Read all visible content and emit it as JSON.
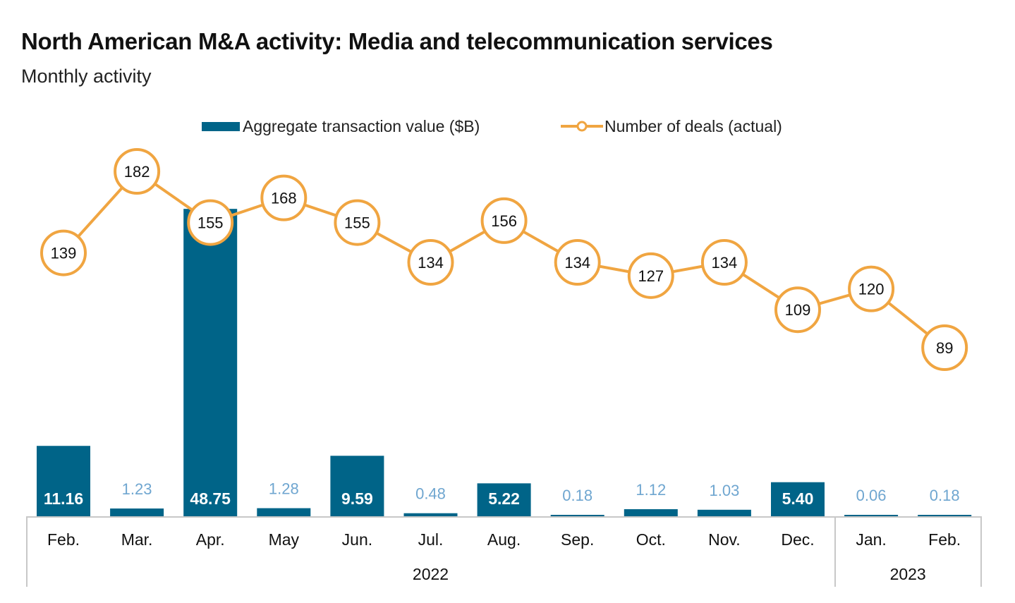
{
  "header": {
    "title": "North American M&A activity: Media and telecommunication services",
    "subtitle": "Monthly activity"
  },
  "legend": {
    "bar_label": "Aggregate transaction value ($B)",
    "line_label": "Number of deals (actual)"
  },
  "colors": {
    "bar": "#006488",
    "line": "#f0a541",
    "bar_label_outside": "#6fa6d0",
    "axis": "#c8c8c8"
  },
  "chart_data": {
    "type": "bar+line",
    "title": "North American M&A activity: Media and telecommunication services",
    "subtitle": "Monthly activity",
    "categories": [
      "Feb.",
      "Mar.",
      "Apr.",
      "May",
      "Jun.",
      "Jul.",
      "Aug.",
      "Sep.",
      "Oct.",
      "Nov.",
      "Dec.",
      "Jan.",
      "Feb."
    ],
    "category_years": [
      "2022",
      "2022",
      "2022",
      "2022",
      "2022",
      "2022",
      "2022",
      "2022",
      "2022",
      "2022",
      "2022",
      "2023",
      "2023"
    ],
    "year_groups": [
      {
        "label": "2022",
        "start": 0,
        "end": 10
      },
      {
        "label": "2023",
        "start": 11,
        "end": 12
      }
    ],
    "series": [
      {
        "name": "Aggregate transaction value ($B)",
        "type": "bar",
        "values": [
          11.16,
          1.23,
          48.75,
          1.28,
          9.59,
          0.48,
          5.22,
          0.18,
          1.12,
          1.03,
          5.4,
          0.06,
          0.18
        ],
        "labels": [
          "11.16",
          "1.23",
          "48.75",
          "1.28",
          "9.59",
          "0.48",
          "5.22",
          "0.18",
          "1.12",
          "1.03",
          "5.40",
          "0.06",
          "0.18"
        ]
      },
      {
        "name": "Number of deals (actual)",
        "type": "line",
        "values": [
          139,
          182,
          155,
          168,
          155,
          134,
          156,
          134,
          127,
          134,
          109,
          120,
          89
        ]
      }
    ],
    "xlabel": "",
    "ylabel": "",
    "grid": false,
    "legend_position": "top-center"
  }
}
